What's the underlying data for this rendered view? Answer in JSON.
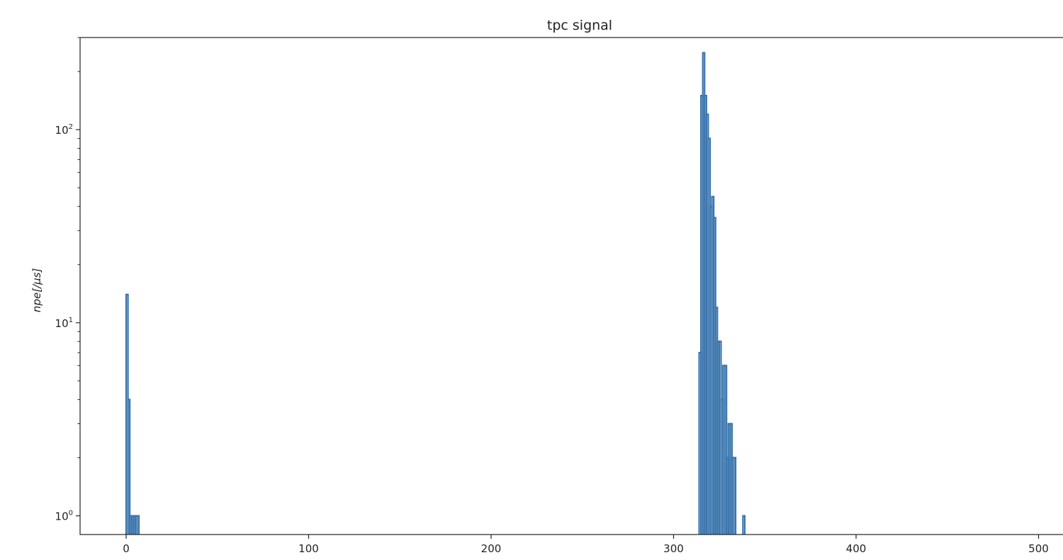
{
  "chart_data": {
    "type": "histogram",
    "title": "tpc signal",
    "xlabel": "",
    "ylabel": "npe[/μs]",
    "xlim": [
      -25,
      512
    ],
    "ylim": [
      0.8,
      300
    ],
    "yscale": "log",
    "grid": false,
    "color": "#3a75ad",
    "x_ticks": [
      0,
      100,
      200,
      300,
      400,
      500
    ],
    "x_tick_labels": [
      "0",
      "100",
      "200",
      "300",
      "400",
      "500"
    ],
    "y_ticks": [
      1,
      10,
      100
    ],
    "y_tick_labels": [
      {
        "base": "10",
        "exp": "0"
      },
      {
        "base": "10",
        "exp": "1"
      },
      {
        "base": "10",
        "exp": "2"
      }
    ],
    "bin_width": 1,
    "bins": [
      {
        "x": 0,
        "y": 14
      },
      {
        "x": 1,
        "y": 4
      },
      {
        "x": 2,
        "y": 1
      },
      {
        "x": 3,
        "y": 1
      },
      {
        "x": 4,
        "y": 1
      },
      {
        "x": 5,
        "y": 1
      },
      {
        "x": 6,
        "y": 1
      },
      {
        "x": 314,
        "y": 7
      },
      {
        "x": 315,
        "y": 150
      },
      {
        "x": 316,
        "y": 250
      },
      {
        "x": 317,
        "y": 150
      },
      {
        "x": 318,
        "y": 120
      },
      {
        "x": 319,
        "y": 90
      },
      {
        "x": 320,
        "y": 40
      },
      {
        "x": 321,
        "y": 45
      },
      {
        "x": 322,
        "y": 35
      },
      {
        "x": 323,
        "y": 12
      },
      {
        "x": 324,
        "y": 8
      },
      {
        "x": 325,
        "y": 8
      },
      {
        "x": 326,
        "y": 4
      },
      {
        "x": 327,
        "y": 6
      },
      {
        "x": 328,
        "y": 6
      },
      {
        "x": 329,
        "y": 2
      },
      {
        "x": 330,
        "y": 3
      },
      {
        "x": 331,
        "y": 3
      },
      {
        "x": 332,
        "y": 2
      },
      {
        "x": 333,
        "y": 2
      },
      {
        "x": 338,
        "y": 1
      }
    ]
  }
}
